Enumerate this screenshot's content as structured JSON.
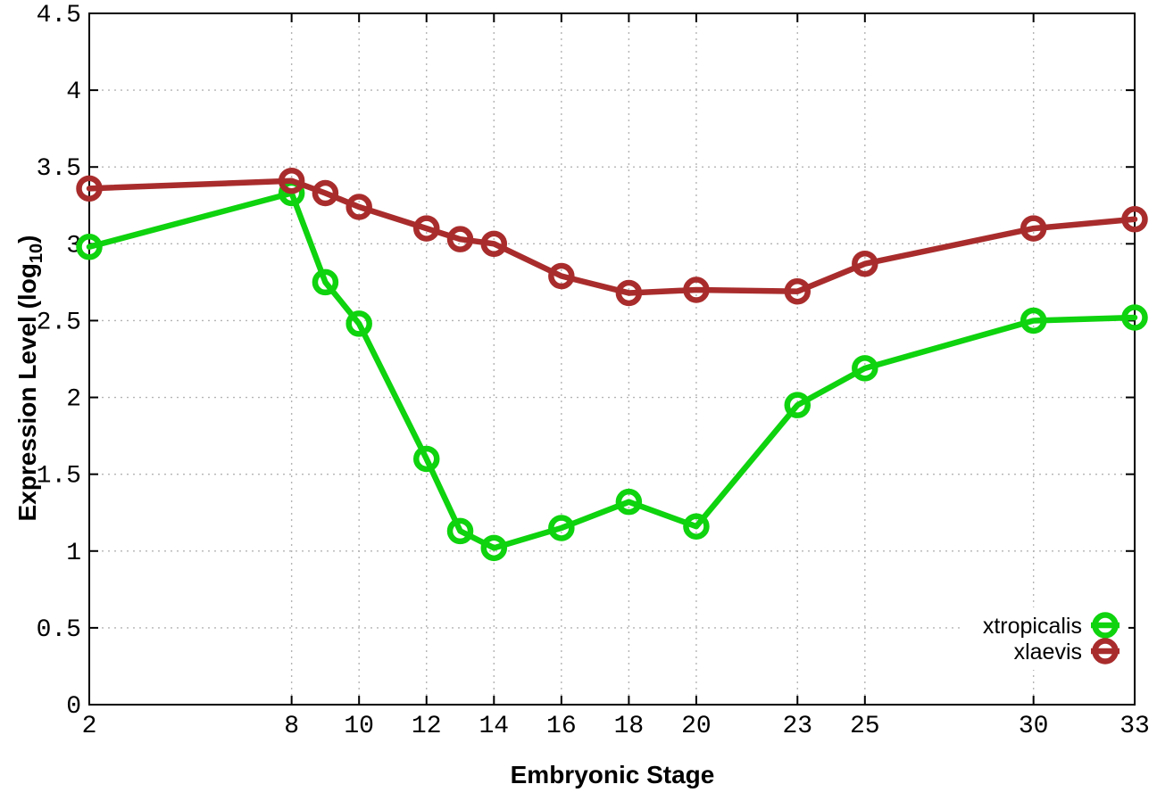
{
  "chart_data": {
    "type": "line",
    "title": "",
    "xlabel": "Embryonic Stage",
    "ylabel": "Expression Level (log10)",
    "ylabel_prefix": "Expression Level (log",
    "ylabel_subscript": "10",
    "ylabel_suffix": ")",
    "xlim": [
      2,
      33
    ],
    "ylim": [
      0,
      4.5
    ],
    "x_ticks": [
      2,
      8,
      10,
      12,
      14,
      16,
      18,
      20,
      23,
      25,
      30,
      33
    ],
    "x_tick_labels": [
      "2",
      "8",
      "10",
      "12",
      "14",
      "16",
      "18",
      "20",
      "23",
      "25",
      "30",
      "33"
    ],
    "y_ticks": [
      0,
      0.5,
      1,
      1.5,
      2,
      2.5,
      3,
      3.5,
      4,
      4.5
    ],
    "y_tick_labels": [
      "0",
      "0.5",
      "1",
      "1.5",
      "2",
      "2.5",
      "3",
      "3.5",
      "4",
      "4.5"
    ],
    "grid": true,
    "legend_position": "bottom-right",
    "background_color": "#ffffff",
    "axis_color": "#000000",
    "grid_color": "#b4b4b4",
    "x": [
      2,
      8,
      9,
      10,
      12,
      13,
      14,
      16,
      18,
      20,
      23,
      25,
      30,
      33
    ],
    "series": [
      {
        "name": "xtropicalis",
        "color": "#0ed30e",
        "marker": "open-circle",
        "values": [
          2.98,
          3.33,
          2.75,
          2.48,
          1.6,
          1.13,
          1.02,
          1.15,
          1.32,
          1.16,
          1.95,
          2.19,
          2.5,
          2.52
        ]
      },
      {
        "name": "xlaevis",
        "color": "#a92c2c",
        "marker": "open-circle",
        "values": [
          3.36,
          3.41,
          3.33,
          3.24,
          3.1,
          3.03,
          3.0,
          2.79,
          2.68,
          2.7,
          2.69,
          2.87,
          3.1,
          3.16
        ]
      }
    ]
  }
}
